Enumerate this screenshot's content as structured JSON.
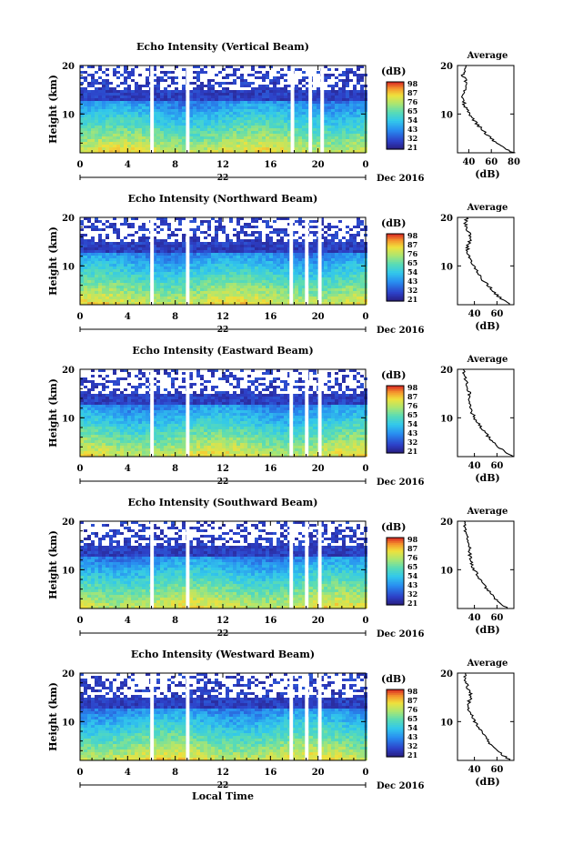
{
  "chart_data": [
    {
      "type": "heatmap",
      "title": "Echo Intensity (Vertical Beam)",
      "ylabel": "Height (km)",
      "yticks": [
        "10",
        "20"
      ],
      "ylim": [
        2,
        20
      ],
      "xticks": [
        "0",
        "4",
        "8",
        "12",
        "16",
        "20",
        "0"
      ],
      "xlim": [
        0,
        24
      ],
      "day": "22",
      "date_label": "Dec 2016",
      "colorbar_unit": "(dB)",
      "colorbar_ticks": [
        "98",
        "87",
        "76",
        "65",
        "54",
        "43",
        "32",
        "21"
      ],
      "top_fill": 0.9,
      "gaps": [
        [
          5.9,
          6.2
        ],
        [
          8.9,
          9.2
        ],
        [
          17.7,
          18.0
        ],
        [
          19.2,
          19.5
        ],
        [
          20.2,
          20.5
        ]
      ],
      "profile": {
        "title": "Average",
        "xlabel": "(dB)",
        "xticks": [
          "40",
          "60",
          "80"
        ],
        "xlim": [
          30,
          80
        ],
        "ylim": [
          2,
          20
        ],
        "yticks": [
          "10",
          "20"
        ],
        "heights": [
          2,
          3,
          4,
          5,
          6,
          7,
          8,
          9,
          10,
          11,
          12,
          13,
          14,
          15,
          16,
          17,
          18,
          19,
          20
        ],
        "values": [
          80,
          71,
          64,
          60,
          55,
          51,
          47,
          44,
          41,
          38,
          36,
          35,
          35,
          36,
          39,
          37,
          34,
          37,
          38
        ]
      }
    },
    {
      "type": "heatmap",
      "title": "Echo Intensity (Northward Beam)",
      "ylabel": "Height (km)",
      "yticks": [
        "10",
        "20"
      ],
      "ylim": [
        2,
        20
      ],
      "xticks": [
        "0",
        "4",
        "8",
        "12",
        "16",
        "20",
        "0"
      ],
      "xlim": [
        0,
        24
      ],
      "day": "22",
      "date_label": "Dec 2016",
      "colorbar_unit": "(dB)",
      "colorbar_ticks": [
        "98",
        "87",
        "76",
        "65",
        "54",
        "43",
        "32",
        "21"
      ],
      "top_fill": 0.8,
      "gaps": [
        [
          5.9,
          6.2
        ],
        [
          8.9,
          9.2
        ],
        [
          17.6,
          17.9
        ],
        [
          18.9,
          19.2
        ],
        [
          20.0,
          20.3
        ]
      ],
      "profile": {
        "title": "Average",
        "xlabel": "(dB)",
        "xticks": [
          "40",
          "60"
        ],
        "xlim": [
          25,
          75
        ],
        "ylim": [
          2,
          20
        ],
        "yticks": [
          "10",
          "20"
        ],
        "heights": [
          2,
          3,
          4,
          5,
          6,
          7,
          8,
          9,
          10,
          11,
          12,
          13,
          14,
          15,
          16,
          17,
          18,
          19,
          20
        ],
        "values": [
          72,
          65,
          60,
          56,
          52,
          48,
          45,
          42,
          39,
          37,
          35,
          34,
          34,
          36,
          37,
          35,
          33,
          32,
          33
        ]
      }
    },
    {
      "type": "heatmap",
      "title": "Echo Intensity (Eastward Beam)",
      "ylabel": "Height (km)",
      "yticks": [
        "10",
        "20"
      ],
      "ylim": [
        2,
        20
      ],
      "xticks": [
        "0",
        "4",
        "8",
        "12",
        "16",
        "20",
        "0"
      ],
      "xlim": [
        0,
        24
      ],
      "day": "22",
      "date_label": "Dec 2016",
      "colorbar_unit": "(dB)",
      "colorbar_ticks": [
        "98",
        "87",
        "76",
        "65",
        "54",
        "43",
        "32",
        "21"
      ],
      "top_fill": 0.65,
      "gaps": [
        [
          5.9,
          6.2
        ],
        [
          8.9,
          9.2
        ],
        [
          17.6,
          17.9
        ],
        [
          18.9,
          19.2
        ],
        [
          20.0,
          20.3
        ]
      ],
      "profile": {
        "title": "Average",
        "xlabel": "(dB)",
        "xticks": [
          "40",
          "60"
        ],
        "xlim": [
          25,
          75
        ],
        "ylim": [
          2,
          20
        ],
        "yticks": [
          "10",
          "20"
        ],
        "heights": [
          2,
          3,
          4,
          5,
          6,
          7,
          8,
          9,
          10,
          11,
          12,
          13,
          14,
          15,
          16,
          17,
          18,
          19,
          20
        ],
        "values": [
          74,
          67,
          61,
          57,
          53,
          49,
          46,
          43,
          40,
          38,
          36,
          35,
          35,
          36,
          34,
          33,
          32,
          31,
          30
        ]
      }
    },
    {
      "type": "heatmap",
      "title": "Echo Intensity (Southward Beam)",
      "ylabel": "Height (km)",
      "yticks": [
        "10",
        "20"
      ],
      "ylim": [
        2,
        20
      ],
      "xticks": [
        "0",
        "4",
        "8",
        "12",
        "16",
        "20",
        "0"
      ],
      "xlim": [
        0,
        24
      ],
      "day": "22",
      "date_label": "Dec 2016",
      "colorbar_unit": "(dB)",
      "colorbar_ticks": [
        "98",
        "87",
        "76",
        "65",
        "54",
        "43",
        "32",
        "21"
      ],
      "top_fill": 0.65,
      "gaps": [
        [
          5.9,
          6.2
        ],
        [
          8.9,
          9.2
        ],
        [
          17.6,
          17.9
        ],
        [
          18.9,
          19.2
        ],
        [
          20.0,
          20.3
        ]
      ],
      "profile": {
        "title": "Average",
        "xlabel": "(dB)",
        "xticks": [
          "40",
          "60"
        ],
        "xlim": [
          25,
          75
        ],
        "ylim": [
          2,
          20
        ],
        "yticks": [
          "10",
          "20"
        ],
        "heights": [
          2,
          3,
          4,
          5,
          6,
          7,
          8,
          9,
          10,
          11,
          12,
          13,
          14,
          15,
          16,
          17,
          18,
          19,
          20
        ],
        "values": [
          70,
          64,
          59,
          55,
          51,
          48,
          45,
          42,
          40,
          38,
          37,
          36,
          35,
          36,
          35,
          34,
          32,
          31,
          31
        ]
      }
    },
    {
      "type": "heatmap",
      "title": "Echo Intensity (Westward Beam)",
      "ylabel": "Height (km)",
      "yticks": [
        "10",
        "20"
      ],
      "ylim": [
        2,
        20
      ],
      "xticks": [
        "0",
        "4",
        "8",
        "12",
        "16",
        "20",
        "0"
      ],
      "xlim": [
        0,
        24
      ],
      "day": "22",
      "date_label": "Dec 2016",
      "xlabel": "Local Time",
      "colorbar_unit": "(dB)",
      "colorbar_ticks": [
        "98",
        "87",
        "76",
        "65",
        "54",
        "43",
        "32",
        "21"
      ],
      "top_fill": 0.75,
      "gaps": [
        [
          5.9,
          6.2
        ],
        [
          8.9,
          9.2
        ],
        [
          17.6,
          17.9
        ],
        [
          18.9,
          19.2
        ],
        [
          20.0,
          20.3
        ]
      ],
      "profile": {
        "title": "Average",
        "xlabel": "(dB)",
        "xticks": [
          "40",
          "60"
        ],
        "xlim": [
          25,
          75
        ],
        "ylim": [
          2,
          20
        ],
        "yticks": [
          "10",
          "20"
        ],
        "heights": [
          2,
          3,
          4,
          5,
          6,
          7,
          8,
          9,
          10,
          11,
          12,
          13,
          14,
          15,
          16,
          17,
          18,
          19,
          20
        ],
        "values": [
          72,
          66,
          60,
          56,
          52,
          49,
          46,
          43,
          40,
          38,
          36,
          35,
          35,
          37,
          36,
          34,
          33,
          32,
          32
        ]
      }
    }
  ]
}
